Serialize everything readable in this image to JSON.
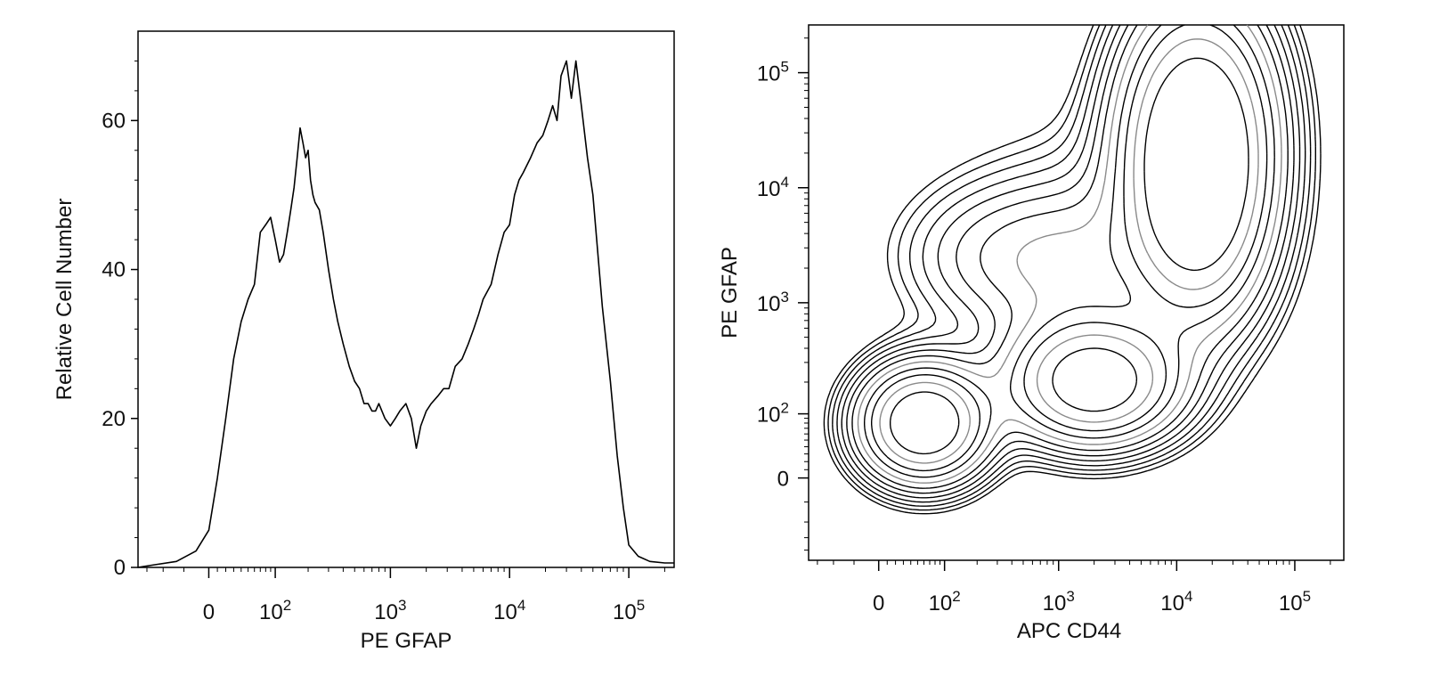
{
  "chart_data": [
    {
      "type": "line",
      "subtype": "histogram",
      "xlabel": "PE GFAP",
      "ylabel": "Relative Cell Number",
      "x_scale": "biexponential",
      "x_ticks": [
        {
          "value": 0,
          "label": "0"
        },
        {
          "value": 100,
          "label": "10",
          "sup": "2"
        },
        {
          "value": 1000,
          "label": "10",
          "sup": "3"
        },
        {
          "value": 10000,
          "label": "10",
          "sup": "4"
        },
        {
          "value": 100000,
          "label": "10",
          "sup": "5"
        }
      ],
      "y_ticks": [
        {
          "value": 0,
          "label": "0"
        },
        {
          "value": 20,
          "label": "20"
        },
        {
          "value": 40,
          "label": "40"
        },
        {
          "value": 60,
          "label": "60"
        }
      ],
      "ylim": [
        0,
        72
      ],
      "grid": false,
      "series": [
        {
          "x": [
            -80,
            -40,
            -15,
            0,
            10,
            20,
            30,
            40,
            50,
            60,
            70,
            80,
            90,
            100,
            110,
            120,
            130,
            140,
            150,
            160,
            170,
            180,
            190,
            200,
            210,
            220,
            230,
            250,
            270,
            300,
            330,
            360,
            400,
            450,
            500,
            550,
            600,
            650,
            700,
            750,
            800,
            900,
            1000,
            1100,
            1200,
            1350,
            1500,
            1650,
            1800,
            2000,
            2200,
            2500,
            2800,
            3100,
            3500,
            4000,
            4500,
            5000,
            5500,
            6000,
            7000,
            8000,
            9000,
            10000,
            11000,
            12000,
            13000,
            15000,
            17000,
            19000,
            21000,
            23000,
            25000,
            27000,
            30000,
            33000,
            36000,
            40000,
            45000,
            50000,
            60000,
            70000,
            80000,
            90000,
            100000,
            120000,
            150000,
            200000
          ],
          "y": [
            0.3,
            0.8,
            2.2,
            5,
            12,
            20,
            28,
            33,
            36,
            38,
            45,
            46,
            47,
            44,
            41,
            42,
            45,
            48,
            51,
            55,
            59,
            57,
            55,
            56,
            52,
            50,
            49,
            48,
            45,
            40,
            36,
            33,
            30,
            27,
            25,
            24,
            22,
            22,
            21,
            21,
            22,
            20,
            19,
            20,
            21,
            22,
            20,
            16,
            19,
            21,
            22,
            23,
            24,
            24,
            27,
            28,
            30,
            32,
            34,
            36,
            38,
            42,
            45,
            46,
            50,
            52,
            53,
            55,
            57,
            58,
            60,
            62,
            60,
            66,
            68,
            63,
            68,
            62,
            55,
            50,
            35,
            25,
            15,
            8,
            3,
            1.5,
            0.8,
            0.6
          ]
        }
      ]
    },
    {
      "type": "contour",
      "xlabel": "APC CD44",
      "ylabel": "PE GFAP",
      "x_scale": "biexponential",
      "y_scale": "biexponential",
      "x_ticks": [
        {
          "value": 0,
          "label": "0"
        },
        {
          "value": 100,
          "label": "10",
          "sup": "2"
        },
        {
          "value": 1000,
          "label": "10",
          "sup": "3"
        },
        {
          "value": 10000,
          "label": "10",
          "sup": "4"
        },
        {
          "value": 100000,
          "label": "10",
          "sup": "5"
        }
      ],
      "y_ticks": [
        {
          "value": 0,
          "label": "0"
        },
        {
          "value": 100,
          "label": "10",
          "sup": "2"
        },
        {
          "value": 1000,
          "label": "10",
          "sup": "3"
        },
        {
          "value": 10000,
          "label": "10",
          "sup": "4"
        },
        {
          "value": 100000,
          "label": "10",
          "sup": "5"
        }
      ],
      "grid": false,
      "populations": [
        {
          "x": 60,
          "y": 80,
          "level": 1.0
        },
        {
          "x": 2000,
          "y": 200,
          "level": 0.9
        },
        {
          "x": 15000,
          "y": 30000,
          "level": 1.0
        },
        {
          "x": 300,
          "y": 2500,
          "level": 0.12
        },
        {
          "x": 1500,
          "y": 2000,
          "level": 0.12
        },
        {
          "x": 15000,
          "y": 5000,
          "level": 0.5
        }
      ],
      "contour_levels": 12
    }
  ]
}
